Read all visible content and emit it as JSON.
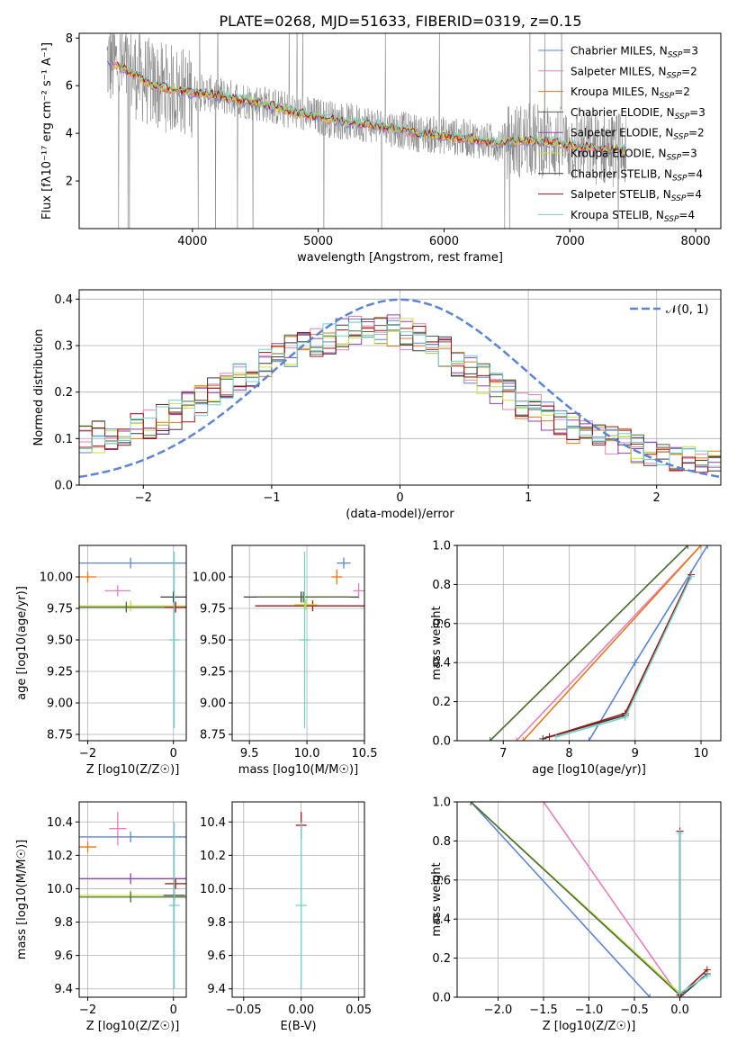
{
  "title": "PLATE=0268, MJD=51633, FIBERID=0319, z=0.15",
  "colors": {
    "Chabrier MILES": "#5b84d4",
    "Salpeter MILES": "#e87fbd",
    "Kroupa MILES": "#e8771b",
    "Chabrier ELODIE": "#4a6b3a",
    "Salpeter ELODIE": "#8f3fb5",
    "Kroupa ELODIE": "#c6e33a",
    "Chabrier STELIB": "#3a3a3a",
    "Salpeter STELIB": "#a31414",
    "Kroupa STELIB": "#6fd3c8",
    "observed": "#7f7f7f",
    "normal": "#5b84d4"
  },
  "chart_data": [
    {
      "id": "spectrum",
      "type": "line",
      "xlabel": "wavelength [Angstrom, rest frame]",
      "ylabel": "Flux [fλ10⁻¹⁷ erg cm⁻² s⁻¹ A⁻¹]",
      "xlim": [
        3100,
        8200
      ],
      "ylim": [
        0,
        8.2
      ],
      "xticks": [
        "4000",
        "5000",
        "6000",
        "7000",
        "8000"
      ],
      "yticks": [
        "2",
        "4",
        "6",
        "8"
      ],
      "grid": false,
      "legend_position": "top-right",
      "legend": [
        {
          "label": "Chabrier MILES, N",
          "sub": "SSP",
          "suffix": "=3"
        },
        {
          "label": "Salpeter MILES, N",
          "sub": "SSP",
          "suffix": "=2"
        },
        {
          "label": "Kroupa MILES, N",
          "sub": "SSP",
          "suffix": "=2"
        },
        {
          "label": "Chabrier ELODIE, N",
          "sub": "SSP",
          "suffix": "=3"
        },
        {
          "label": "Salpeter ELODIE, N",
          "sub": "SSP",
          "suffix": "=2"
        },
        {
          "label": "Kroupa ELODIE, N",
          "sub": "SSP",
          "suffix": "=3"
        },
        {
          "label": "Chabrier STELIB, N",
          "sub": "SSP",
          "suffix": "=4"
        },
        {
          "label": "Salpeter STELIB, N",
          "sub": "SSP",
          "suffix": "=4"
        },
        {
          "label": "Kroupa STELIB, N",
          "sub": "SSP",
          "suffix": "=4"
        }
      ],
      "model_continuum": {
        "x": [
          3300,
          3400,
          3500,
          3600,
          3700,
          3800,
          3900,
          4000,
          4100,
          4200,
          4300,
          4400,
          4500,
          4600,
          4800,
          5000,
          5200,
          5400,
          5600,
          5800,
          6000,
          6200,
          6400,
          6600,
          6800,
          7000,
          7200,
          7400
        ],
        "y": [
          7.0,
          6.9,
          6.6,
          6.3,
          6.0,
          5.9,
          5.8,
          5.7,
          5.7,
          5.6,
          5.5,
          5.4,
          5.3,
          5.2,
          4.9,
          4.7,
          4.5,
          4.4,
          4.2,
          4.0,
          3.9,
          3.8,
          3.6,
          3.7,
          3.7,
          3.5,
          3.4,
          3.3
        ]
      }
    },
    {
      "id": "residuals",
      "type": "line",
      "xlabel": "(data-model)/error",
      "ylabel": "Normed distribution",
      "xlim": [
        -2.5,
        2.5
      ],
      "ylim": [
        0,
        0.42
      ],
      "xticks": [
        "−2",
        "−1",
        "0",
        "1",
        "2"
      ],
      "yticks": [
        "0.0",
        "0.1",
        "0.2",
        "0.3",
        "0.4"
      ],
      "grid": true,
      "legend_position": "top-right",
      "legend_label": "𝒩(0, 1)",
      "hist_center": {
        "x": [
          -2.5,
          -2.25,
          -2.0,
          -1.75,
          -1.5,
          -1.25,
          -1.0,
          -0.75,
          -0.5,
          -0.25,
          0.0,
          0.25,
          0.5,
          0.75,
          1.0,
          1.25,
          1.5,
          1.75,
          2.0,
          2.25,
          2.5
        ],
        "y": [
          0.095,
          0.11,
          0.13,
          0.15,
          0.19,
          0.23,
          0.27,
          0.3,
          0.32,
          0.34,
          0.33,
          0.3,
          0.26,
          0.21,
          0.17,
          0.13,
          0.11,
          0.09,
          0.07,
          0.055,
          0.05
        ]
      }
    },
    {
      "id": "age_vs_Z",
      "type": "scatter",
      "xlabel": "Z [log10(Z/Z☉)]",
      "ylabel": "age  [log10(age/yr)]",
      "xlim": [
        -2.2,
        0.3
      ],
      "ylim": [
        8.7,
        10.25
      ],
      "xticks": [
        "−2",
        "0"
      ],
      "yticks": [
        "8.75",
        "9.00",
        "9.25",
        "9.50",
        "9.75",
        "10.00"
      ],
      "grid": true,
      "points": [
        {
          "series": "Chabrier MILES",
          "x": -1.0,
          "y": 10.11,
          "xerr": 1.5
        },
        {
          "series": "Salpeter MILES",
          "x": -1.3,
          "y": 9.89,
          "xerr": 0.3
        },
        {
          "series": "Kroupa MILES",
          "x": -2.0,
          "y": 10.0,
          "xerr": 0.2
        },
        {
          "series": "Kroupa ELODIE",
          "x": -1.0,
          "y": 9.77,
          "xerr": 1.5
        },
        {
          "series": "Chabrier ELODIE",
          "x": -1.1,
          "y": 9.76,
          "xerr": 1.4
        },
        {
          "series": "Chabrier STELIB",
          "x": 0.0,
          "y": 9.84,
          "xerr": 0.3
        },
        {
          "series": "Salpeter STELIB",
          "x": 0.05,
          "y": 9.76,
          "xerr": 0.25
        },
        {
          "series": "Kroupa STELIB",
          "x": 0.02,
          "y": 9.5,
          "yerr": 0.7
        }
      ]
    },
    {
      "id": "age_vs_mass",
      "type": "scatter",
      "xlabel": "mass [log10(M/M☉)]",
      "ylabel": "",
      "xlim": [
        9.35,
        10.5
      ],
      "ylim": [
        8.7,
        10.25
      ],
      "xticks": [
        "9.5",
        "10.0",
        "10.5"
      ],
      "yticks": [
        "8.75",
        "9.00",
        "9.25",
        "9.50",
        "9.75",
        "10.00"
      ],
      "grid": true,
      "points": [
        {
          "series": "Chabrier MILES",
          "x": 10.32,
          "y": 10.11,
          "xerr": 0.06
        },
        {
          "series": "Kroupa MILES",
          "x": 10.26,
          "y": 10.0,
          "yerr": 0.06
        },
        {
          "series": "Salpeter MILES",
          "x": 10.45,
          "y": 9.89,
          "yerr": 0.06
        },
        {
          "series": "Chabrier STELIB",
          "x": 9.95,
          "y": 9.84,
          "xerr": 0.5
        },
        {
          "series": "Chabrier ELODIE",
          "x": 9.97,
          "y": 9.84,
          "xerr": 0.4
        },
        {
          "series": "Salpeter STELIB",
          "x": 10.05,
          "y": 9.77,
          "xerr": 0.5
        },
        {
          "series": "Kroupa STELIB",
          "x": 9.98,
          "y": 9.5,
          "yerr": 0.7
        },
        {
          "series": "Kroupa ELODIE",
          "x": 9.99,
          "y": 9.78,
          "xerr": 0.1
        }
      ]
    },
    {
      "id": "weight_vs_age",
      "type": "line",
      "xlabel": "age  [log10(age/yr)]",
      "ylabel": "mass weight",
      "xlim": [
        6.3,
        10.3
      ],
      "ylim": [
        0,
        1.0
      ],
      "xticks": [
        "7",
        "8",
        "9",
        "10"
      ],
      "yticks": [
        "0.0",
        "0.2",
        "0.4",
        "0.6",
        "0.8",
        "1.0"
      ],
      "grid": true,
      "series": [
        {
          "name": "Chabrier MILES",
          "x": [
            8.3,
            9.0,
            10.1
          ],
          "y": [
            0.0,
            0.4,
            1.0
          ]
        },
        {
          "name": "Salpeter MILES",
          "x": [
            7.2,
            10.0
          ],
          "y": [
            0.0,
            1.0
          ]
        },
        {
          "name": "Kroupa MILES",
          "x": [
            7.3,
            10.0
          ],
          "y": [
            0.0,
            1.0
          ]
        },
        {
          "name": "Kroupa ELODIE",
          "x": [
            6.8,
            9.8
          ],
          "y": [
            0.0,
            1.0
          ]
        },
        {
          "name": "Chabrier ELODIE",
          "x": [
            6.8,
            9.8
          ],
          "y": [
            0.0,
            1.0
          ]
        },
        {
          "name": "Chabrier STELIB",
          "x": [
            7.6,
            8.85,
            9.85
          ],
          "y": [
            0.01,
            0.13,
            0.85
          ]
        },
        {
          "name": "Salpeter STELIB",
          "x": [
            7.7,
            8.85,
            9.85
          ],
          "y": [
            0.02,
            0.14,
            0.85
          ]
        },
        {
          "name": "Kroupa STELIB",
          "x": [
            7.8,
            8.85,
            9.85
          ],
          "y": [
            0.02,
            0.12,
            0.84
          ]
        }
      ]
    },
    {
      "id": "mass_vs_Z",
      "type": "scatter",
      "xlabel": "Z [log10(Z/Z☉)]",
      "ylabel": "mass [log10(M/M☉)]",
      "xlim": [
        -2.2,
        0.3
      ],
      "ylim": [
        9.35,
        10.52
      ],
      "xticks": [
        "−2",
        "0"
      ],
      "yticks": [
        "9.4",
        "9.6",
        "9.8",
        "10.0",
        "10.2",
        "10.4"
      ],
      "grid": true,
      "points": [
        {
          "series": "Salpeter MILES",
          "x": -1.3,
          "y": 10.36,
          "xerr": 0.2,
          "yerr": 0.1
        },
        {
          "series": "Chabrier MILES",
          "x": -1.0,
          "y": 10.31,
          "xerr": 1.5
        },
        {
          "series": "Kroupa MILES",
          "x": -2.0,
          "y": 10.25,
          "xerr": 0.2
        },
        {
          "series": "Salpeter ELODIE",
          "x": -1.0,
          "y": 10.06,
          "xerr": 1.5
        },
        {
          "series": "Kroupa ELODIE",
          "x": -1.0,
          "y": 9.96,
          "xerr": 1.5
        },
        {
          "series": "Chabrier ELODIE",
          "x": -1.0,
          "y": 9.95,
          "xerr": 1.4
        },
        {
          "series": "Salpeter STELIB",
          "x": 0.05,
          "y": 10.03,
          "xerr": 0.25
        },
        {
          "series": "Chabrier STELIB",
          "x": 0.02,
          "y": 9.96,
          "xerr": 0.25
        },
        {
          "series": "Kroupa STELIB",
          "x": 0.02,
          "y": 9.9,
          "yerr": 0.5
        }
      ]
    },
    {
      "id": "mass_vs_EBV",
      "type": "scatter",
      "xlabel": "E(B-V)",
      "ylabel": "",
      "xlim": [
        -0.06,
        0.055
      ],
      "ylim": [
        9.35,
        10.52
      ],
      "xticks": [
        "−0.05",
        "0.00",
        "0.05"
      ],
      "yticks": [
        "9.4",
        "9.6",
        "9.8",
        "10.0",
        "10.2",
        "10.4"
      ],
      "grid": true,
      "points": [
        {
          "series": "Salpeter STELIB",
          "x": 0.0,
          "y": 10.38,
          "yerr": 0.08
        },
        {
          "series": "Kroupa STELIB",
          "x": 0.0,
          "y": 9.9,
          "yerr": 0.5
        }
      ]
    },
    {
      "id": "weight_vs_Z",
      "type": "line",
      "xlabel": "Z [log10(Z/Z☉)]",
      "ylabel": "mass weight",
      "xlim": [
        -2.45,
        0.45
      ],
      "ylim": [
        0,
        1.0
      ],
      "xticks": [
        "−2.0",
        "−1.5",
        "−1.0",
        "−0.5",
        "0.0"
      ],
      "yticks": [
        "0.0",
        "0.2",
        "0.4",
        "0.6",
        "0.8",
        "1.0"
      ],
      "grid": true,
      "series": [
        {
          "name": "Chabrier MILES",
          "x": [
            -2.3,
            -0.33
          ],
          "y": [
            1.0,
            0.0
          ]
        },
        {
          "name": "Salpeter MILES",
          "x": [
            -1.5,
            0.0
          ],
          "y": [
            1.0,
            0.0
          ]
        },
        {
          "name": "Kroupa ELODIE",
          "x": [
            -2.3,
            0.0
          ],
          "y": [
            1.0,
            0.02
          ]
        },
        {
          "name": "Chabrier ELODIE",
          "x": [
            -2.3,
            0.0
          ],
          "y": [
            1.0,
            0.01
          ]
        },
        {
          "name": "Chabrier STELIB",
          "x": [
            0.0,
            0.0,
            0.3
          ],
          "y": [
            0.85,
            0.0,
            0.12
          ]
        },
        {
          "name": "Salpeter STELIB",
          "x": [
            0.0,
            0.0,
            0.3
          ],
          "y": [
            0.85,
            0.01,
            0.14
          ]
        },
        {
          "name": "Kroupa STELIB",
          "x": [
            0.0,
            0.0,
            0.3
          ],
          "y": [
            0.84,
            0.02,
            0.11
          ]
        }
      ]
    }
  ]
}
